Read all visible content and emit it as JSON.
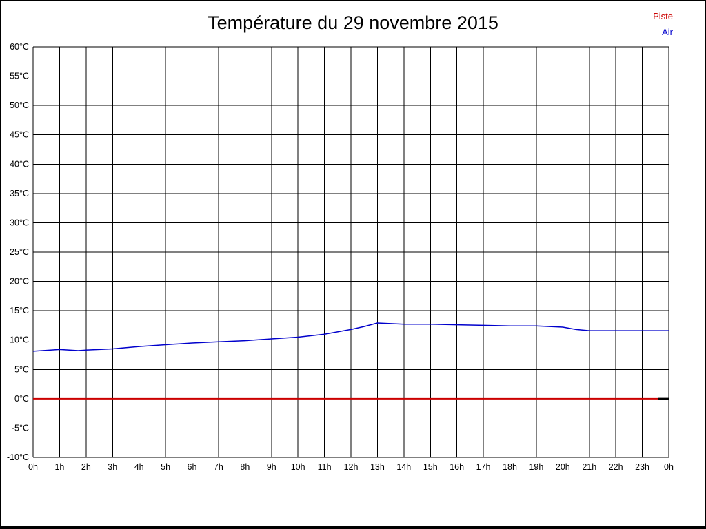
{
  "title": "Température du 29 novembre 2015",
  "legend": [
    {
      "label": "Piste",
      "color": "#cc0000"
    },
    {
      "label": "Air",
      "color": "#0000cc"
    }
  ],
  "colors": {
    "grid": "#000000",
    "background": "#ffffff",
    "frame": "#000000"
  },
  "chart_data": {
    "type": "line",
    "title": "Température du 29 novembre 2015",
    "x_range": [
      0,
      24
    ],
    "y_range": [
      -10,
      60
    ],
    "y_step": 5,
    "grid": true,
    "legend_position": "top-right",
    "x_ticks": [
      "0h",
      "1h",
      "2h",
      "3h",
      "4h",
      "5h",
      "6h",
      "7h",
      "8h",
      "9h",
      "10h",
      "11h",
      "12h",
      "13h",
      "14h",
      "15h",
      "16h",
      "17h",
      "18h",
      "19h",
      "20h",
      "21h",
      "22h",
      "23h",
      "0h"
    ],
    "y_ticks": [
      "60°C",
      "55°C",
      "50°C",
      "45°C",
      "40°C",
      "35°C",
      "30°C",
      "25°C",
      "20°C",
      "15°C",
      "10°C",
      "5°C",
      "0°C",
      "-5°C",
      "-10°C"
    ],
    "series": [
      {
        "name": "Piste",
        "color": "#cc0000",
        "width": 2,
        "x": [
          0,
          1,
          2,
          3,
          4,
          5,
          6,
          7,
          8,
          9,
          10,
          11,
          12,
          13,
          14,
          15,
          16,
          17,
          18,
          19,
          20,
          21,
          22,
          23,
          23.6
        ],
        "values": [
          0,
          0,
          0,
          0,
          0,
          0,
          0,
          0,
          0,
          0,
          0,
          0,
          0,
          0,
          0,
          0,
          0,
          0,
          0,
          0,
          0,
          0,
          0,
          0,
          0
        ]
      },
      {
        "name": "Air",
        "color": "#0000cc",
        "width": 1.5,
        "x": [
          0,
          1,
          1.7,
          2,
          3,
          4,
          5,
          6,
          7,
          8,
          9,
          10,
          11,
          12,
          12.5,
          13,
          13.5,
          14,
          15,
          16,
          17,
          18,
          19,
          20,
          20.5,
          21,
          22,
          23,
          24
        ],
        "values": [
          8.1,
          8.4,
          8.2,
          8.3,
          8.5,
          8.9,
          9.2,
          9.5,
          9.7,
          9.9,
          10.2,
          10.5,
          11.0,
          11.8,
          12.3,
          12.9,
          12.8,
          12.7,
          12.7,
          12.6,
          12.5,
          12.4,
          12.4,
          12.2,
          11.8,
          11.6,
          11.6,
          11.6,
          11.6
        ]
      }
    ],
    "piste_end_black_segment": {
      "x_from": 23.6,
      "x_to": 24,
      "value": 0,
      "color": "#000000",
      "width": 2.5
    }
  }
}
